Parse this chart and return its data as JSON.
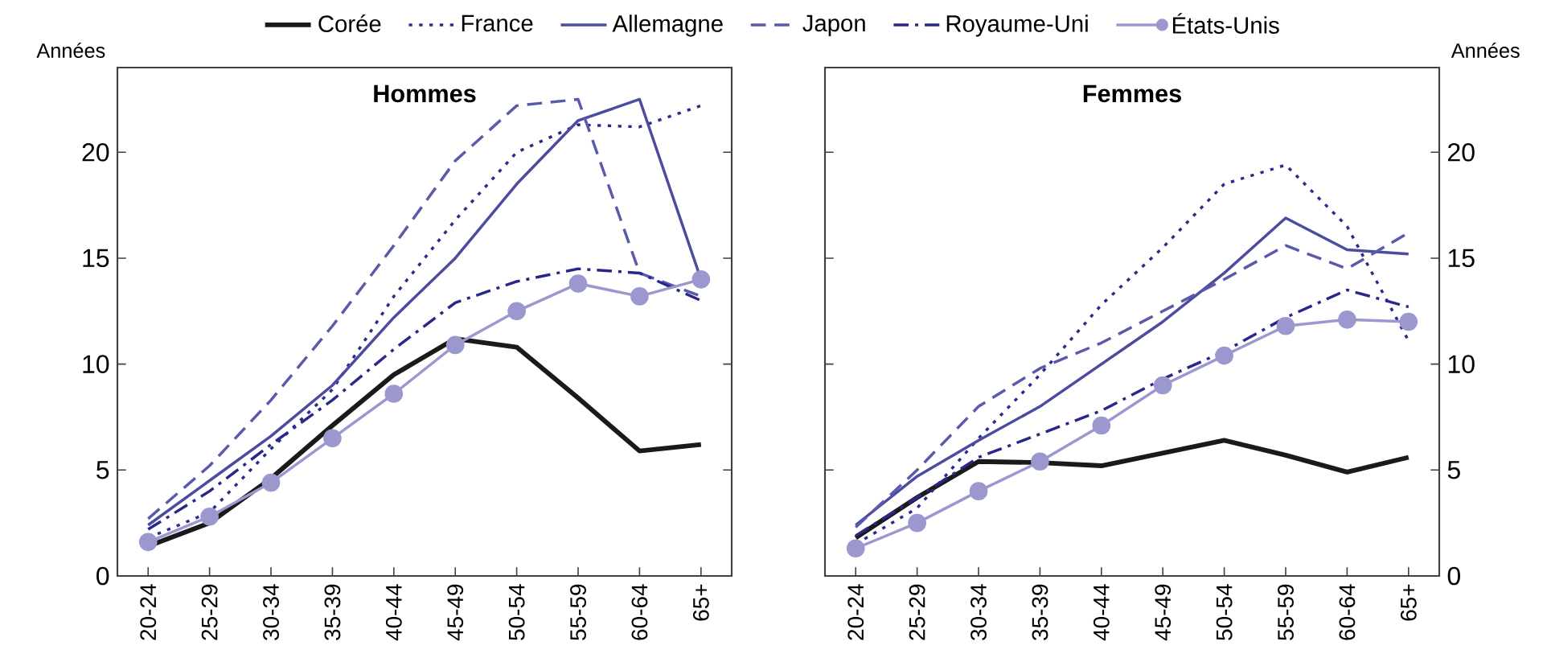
{
  "chart_data": [
    {
      "type": "line",
      "title": "Hommes",
      "ylabel": "Années",
      "categories": [
        "20-24",
        "25-29",
        "30-34",
        "35-39",
        "40-44",
        "45-49",
        "50-54",
        "55-59",
        "60-64",
        "65+"
      ],
      "ylim": [
        0,
        24
      ],
      "yticks": [
        0,
        5,
        10,
        15,
        20
      ],
      "legend": "top",
      "grid": false,
      "series": [
        {
          "name": "Corée",
          "color": "#1a1a1a",
          "line_style": "solid",
          "marker": "none",
          "values": [
            1.4,
            2.5,
            4.6,
            7.1,
            9.5,
            11.2,
            10.8,
            8.4,
            5.9,
            6.2
          ]
        },
        {
          "name": "France",
          "color": "#2b2b8f",
          "line_style": "dotted",
          "marker": "none",
          "values": [
            1.8,
            3.0,
            6.0,
            8.8,
            13.2,
            16.8,
            20.0,
            21.3,
            21.2,
            22.2
          ]
        },
        {
          "name": "Allemagne",
          "color": "#4b4ba0",
          "line_style": "solid",
          "marker": "none",
          "values": [
            2.4,
            4.5,
            6.6,
            9.0,
            12.2,
            15.0,
            18.5,
            21.5,
            22.5,
            14.0
          ]
        },
        {
          "name": "Japon",
          "color": "#5a5aaa",
          "line_style": "dashed",
          "marker": "none",
          "values": [
            2.7,
            5.2,
            8.3,
            11.8,
            15.6,
            19.6,
            22.2,
            22.5,
            14.3,
            13.2
          ]
        },
        {
          "name": "Royaume-Uni",
          "color": "#28288a",
          "line_style": "dashdot",
          "marker": "none",
          "values": [
            2.2,
            4.0,
            6.2,
            8.3,
            10.7,
            12.9,
            13.9,
            14.5,
            14.3,
            13.0
          ]
        },
        {
          "name": "États-Unis",
          "color": "#9b98cf",
          "line_style": "solid",
          "marker": "circle",
          "values": [
            1.6,
            2.8,
            4.4,
            6.5,
            8.6,
            10.9,
            12.5,
            13.8,
            13.2,
            14.0
          ]
        }
      ]
    },
    {
      "type": "line",
      "title": "Femmes",
      "ylabel": "Années",
      "categories": [
        "20-24",
        "25-29",
        "30-34",
        "35-39",
        "40-44",
        "45-49",
        "50-54",
        "55-59",
        "60-64",
        "65+"
      ],
      "ylim": [
        0,
        24
      ],
      "yticks": [
        0,
        5,
        10,
        15,
        20
      ],
      "legend": false,
      "grid": false,
      "series": [
        {
          "color": "#1a1a1a",
          "line_style": "solid",
          "marker": "none",
          "values": [
            1.8,
            3.7,
            5.4,
            5.35,
            5.2,
            5.8,
            6.4,
            5.7,
            4.9,
            5.6
          ]
        },
        {
          "color": "#2b2b8f",
          "line_style": "dotted",
          "marker": "none",
          "values": [
            1.5,
            3.2,
            6.5,
            9.5,
            12.8,
            15.5,
            18.5,
            19.4,
            16.5,
            11.1
          ]
        },
        {
          "color": "#4b4ba0",
          "line_style": "solid",
          "marker": "none",
          "values": [
            2.4,
            4.7,
            6.4,
            8.0,
            10.0,
            12.0,
            14.3,
            16.9,
            15.4,
            15.2
          ]
        },
        {
          "color": "#5a5aaa",
          "line_style": "dashed",
          "marker": "none",
          "values": [
            2.3,
            5.0,
            8.0,
            9.8,
            11.0,
            12.5,
            14.0,
            15.6,
            14.5,
            16.2
          ]
        },
        {
          "color": "#28288a",
          "line_style": "dashdot",
          "marker": "none",
          "values": [
            1.9,
            3.7,
            5.6,
            6.7,
            7.8,
            9.3,
            10.6,
            12.2,
            13.5,
            12.7
          ]
        },
        {
          "color": "#9b98cf",
          "line_style": "solid",
          "marker": "circle",
          "values": [
            1.3,
            2.5,
            4.0,
            5.4,
            7.1,
            9.0,
            10.4,
            11.8,
            12.1,
            12.0
          ]
        }
      ]
    }
  ]
}
